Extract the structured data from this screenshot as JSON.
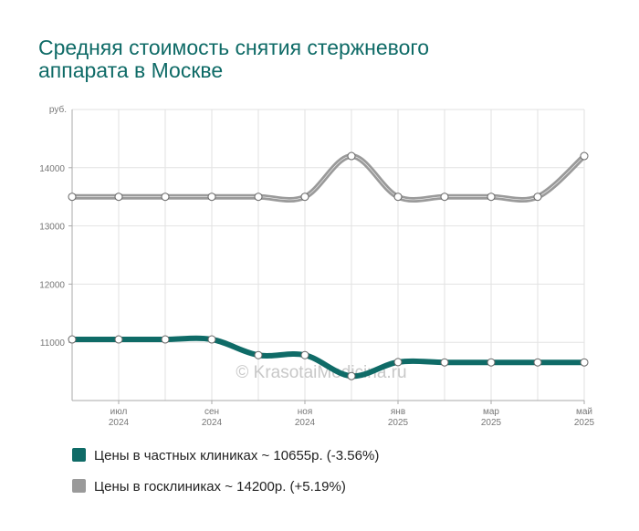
{
  "chart_data": {
    "type": "line",
    "title": "Средняя стоимость снятия стержневого аппарата в Москве",
    "y_unit_label": "руб.",
    "y_ticks": [
      "11000",
      "12000",
      "13000",
      "14000"
    ],
    "ylim": [
      10000,
      15000
    ],
    "x_ticks": [
      {
        "month": "июл",
        "year": "2024"
      },
      {
        "month": "сен",
        "year": "2024"
      },
      {
        "month": "ноя",
        "year": "2024"
      },
      {
        "month": "янв",
        "year": "2025"
      },
      {
        "month": "мар",
        "year": "2025"
      },
      {
        "month": "май",
        "year": "2025"
      }
    ],
    "x": [
      "2024-06",
      "2024-07",
      "2024-08",
      "2024-09",
      "2024-10",
      "2024-11",
      "2024-12",
      "2025-01",
      "2025-02",
      "2025-03",
      "2025-04",
      "2025-05"
    ],
    "grid": true,
    "legend_position": "bottom-left",
    "series": [
      {
        "name": "Цены в частных клиниках ~ 10655р. (-3.56%)",
        "color": "#0f6b67",
        "values": [
          11050,
          11050,
          11050,
          11050,
          10780,
          10780,
          10420,
          10660,
          10655,
          10655,
          10655,
          10655
        ]
      },
      {
        "name": "Цены в госклиниках ~ 14200р. (+5.19%)",
        "color": "#9a9a9a",
        "values": [
          13500,
          13500,
          13500,
          13500,
          13500,
          13500,
          14200,
          13500,
          13500,
          13500,
          13500,
          14200
        ]
      }
    ]
  },
  "watermark": "© KrasotaiMedicina.ru"
}
